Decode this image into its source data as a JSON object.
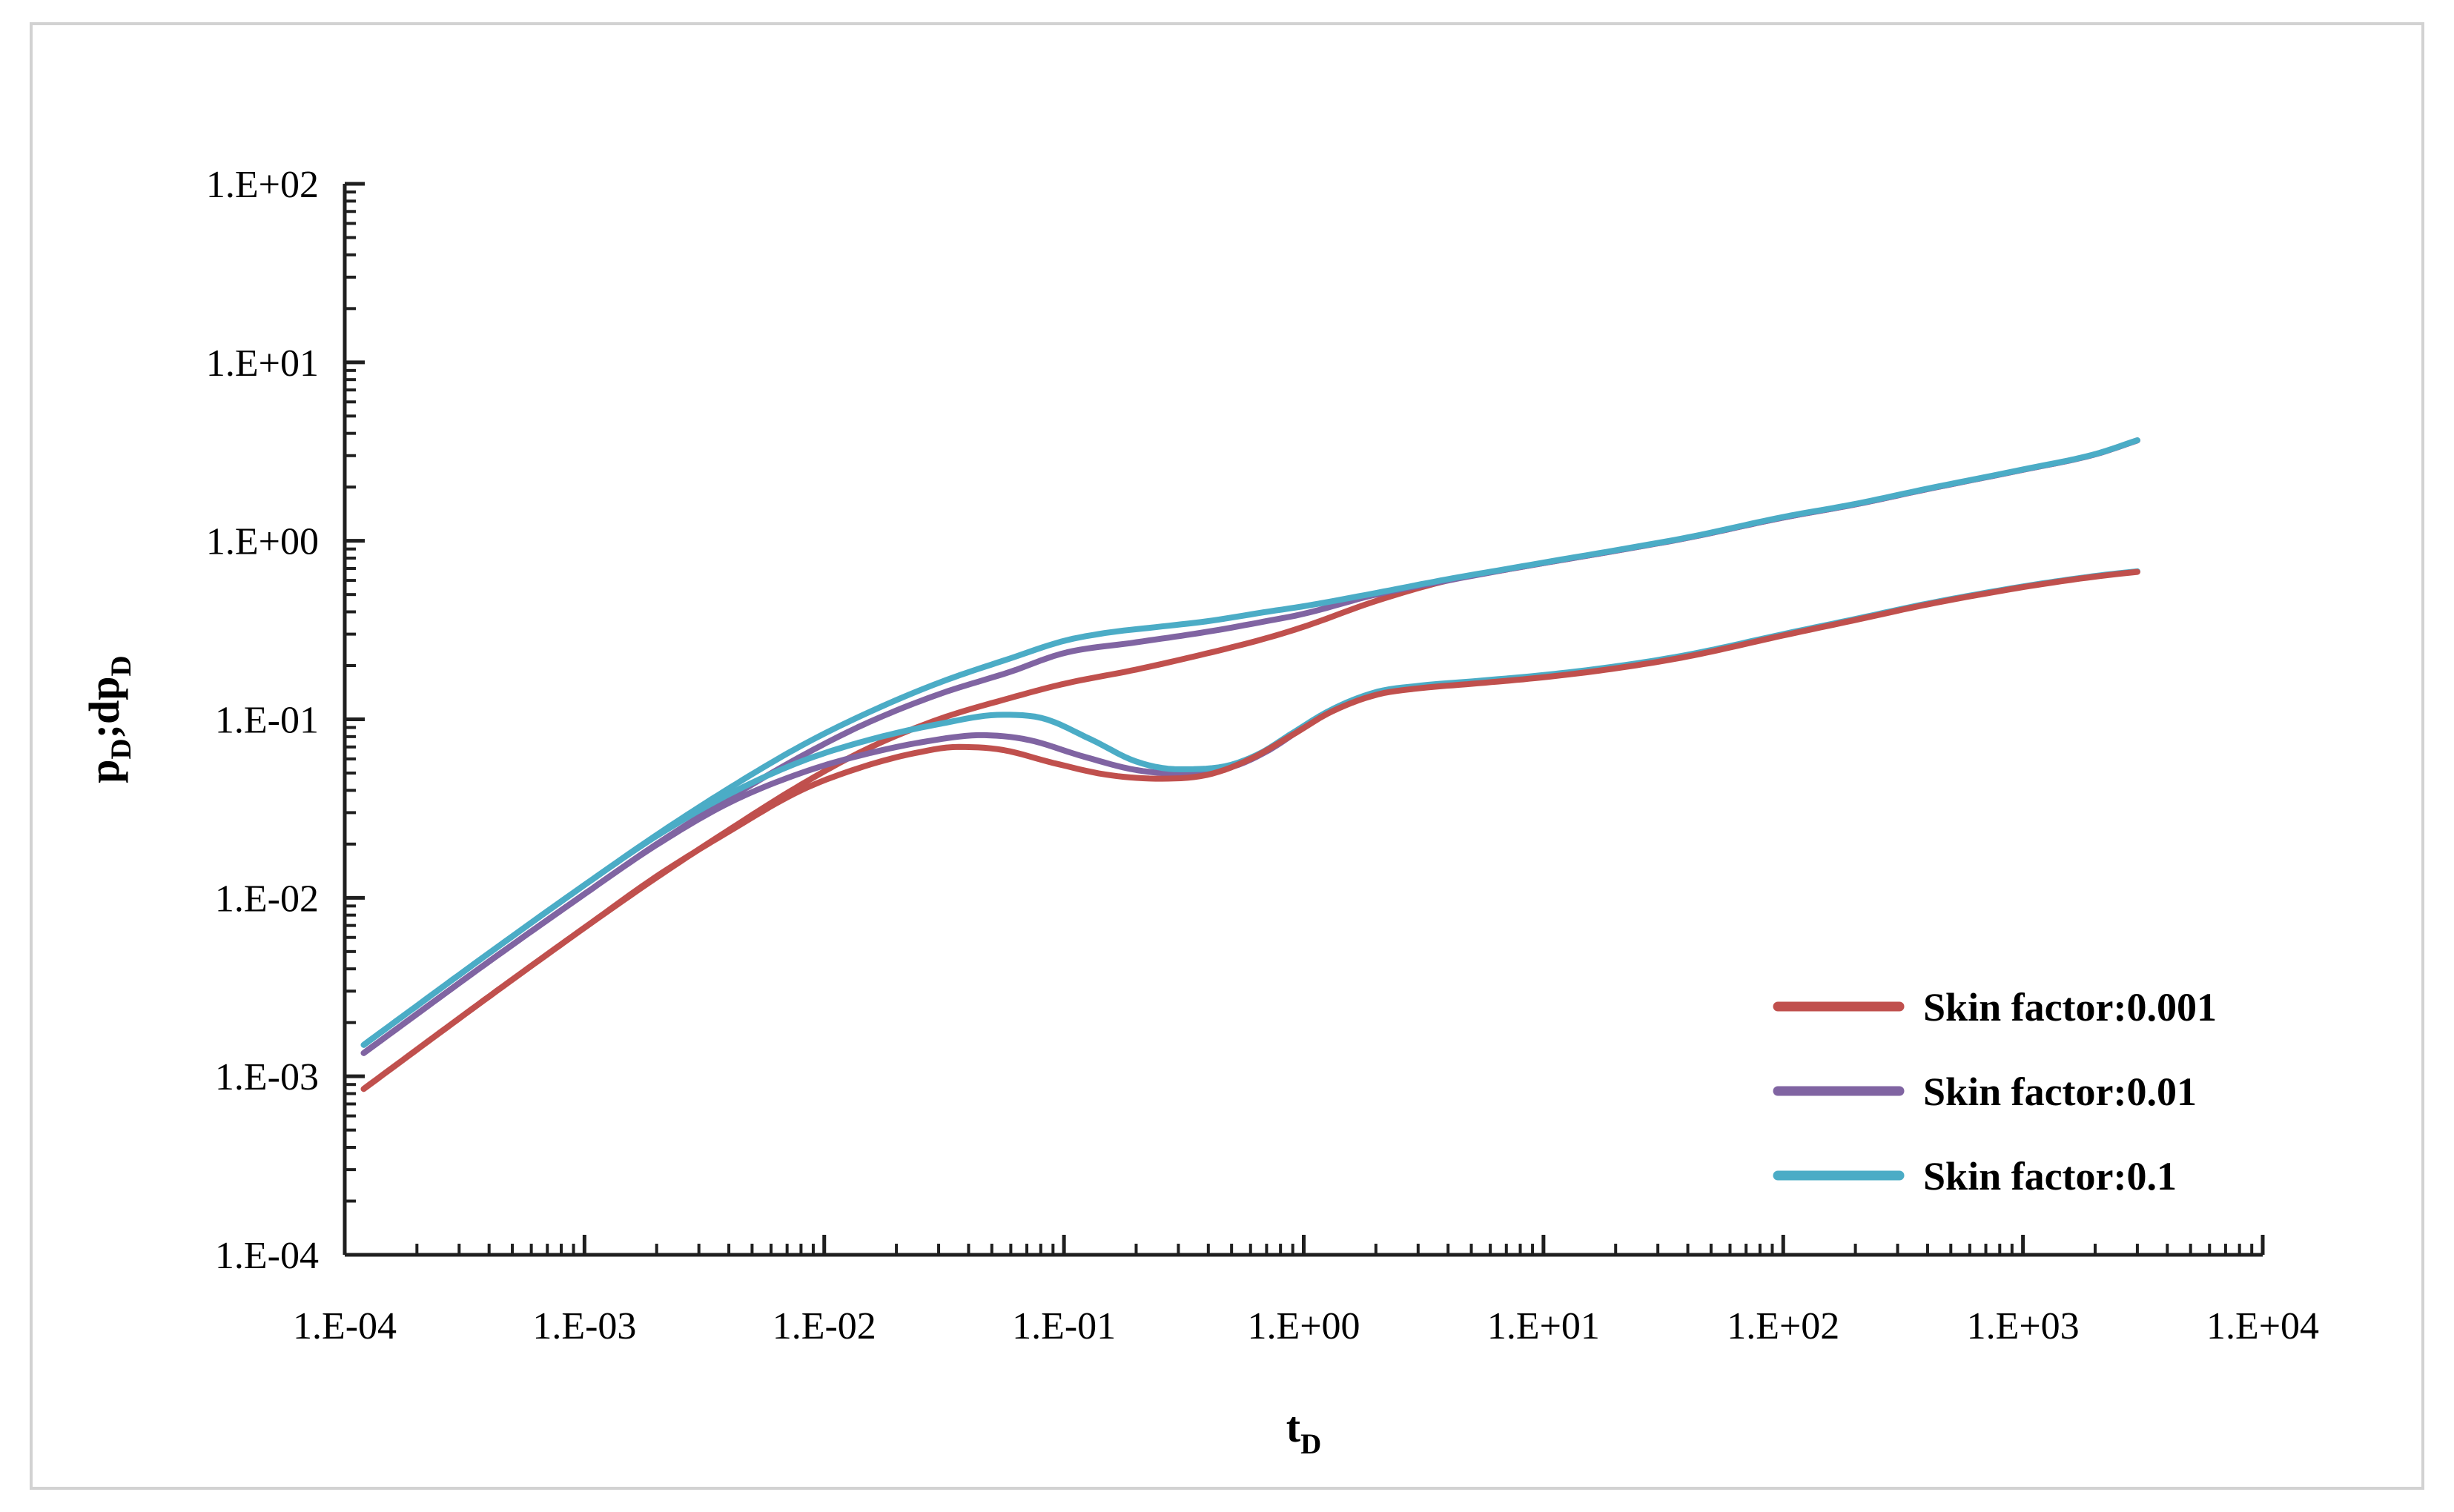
{
  "style": {
    "background": "#ffffff",
    "frame_border_color": "#d2d2d2",
    "axis_color": "#1f1f1f",
    "text_color": "#000000",
    "curve_stroke_width": 8,
    "legend_stroke_width": 13
  },
  "chart_data": {
    "type": "line",
    "title": "",
    "x_axis": {
      "label": "t_D",
      "scale": "log",
      "min": 0.0001,
      "max": 10000,
      "tick_labels": [
        "1.E-04",
        "1.E-03",
        "1.E-02",
        "1.E-01",
        "1.E+00",
        "1.E+01",
        "1.E+02",
        "1.E+03",
        "1.E+04"
      ],
      "tick_values": [
        0.0001,
        0.001,
        0.01,
        0.1,
        1,
        10,
        100,
        1000,
        10000
      ]
    },
    "y_axis": {
      "label": "p_D;dp_D",
      "scale": "log",
      "min": 0.0001,
      "max": 100,
      "tick_labels": [
        "1.E-04",
        "1.E-03",
        "1.E-02",
        "1.E-01",
        "1.E+00",
        "1.E+01",
        "1.E+02"
      ],
      "tick_values": [
        0.0001,
        0.001,
        0.01,
        0.1,
        1,
        10,
        100
      ]
    },
    "legend": {
      "position": "inside-right",
      "entries": [
        {
          "label": "Skin factor:0.001",
          "color": "#C0504D"
        },
        {
          "label": "Skin factor:0.01",
          "color": "#8064A2"
        },
        {
          "label": "Skin factor:0.1",
          "color": "#4BACC6"
        }
      ]
    },
    "series": [
      {
        "id": "pressure-skin-0.001",
        "legend": "Skin factor:0.001",
        "role": "pressure",
        "color": "#C0504D",
        "points": [
          [
            0.00012,
            0.00085
          ],
          [
            0.0004,
            0.0028
          ],
          [
            0.001,
            0.0068
          ],
          [
            0.002,
            0.013
          ],
          [
            0.004,
            0.024
          ],
          [
            0.008,
            0.043
          ],
          [
            0.015,
            0.068
          ],
          [
            0.03,
            0.1
          ],
          [
            0.06,
            0.132
          ],
          [
            0.1,
            0.158
          ],
          [
            0.2,
            0.19
          ],
          [
            0.4,
            0.235
          ],
          [
            0.7,
            0.285
          ],
          [
            1,
            0.33
          ],
          [
            2,
            0.46
          ],
          [
            4,
            0.6
          ],
          [
            7,
            0.69
          ],
          [
            10,
            0.75
          ],
          [
            20,
            0.88
          ],
          [
            40,
            1.04
          ],
          [
            100,
            1.35
          ],
          [
            200,
            1.6
          ],
          [
            400,
            1.95
          ],
          [
            1000,
            2.5
          ],
          [
            2000,
            3.05
          ],
          [
            3000,
            3.65
          ]
        ]
      },
      {
        "id": "pressure-skin-0.01",
        "legend": "Skin factor:0.01",
        "role": "pressure",
        "color": "#8064A2",
        "points": [
          [
            0.00012,
            0.00135
          ],
          [
            0.0004,
            0.0044
          ],
          [
            0.001,
            0.0105
          ],
          [
            0.002,
            0.02
          ],
          [
            0.004,
            0.036
          ],
          [
            0.008,
            0.062
          ],
          [
            0.015,
            0.095
          ],
          [
            0.03,
            0.138
          ],
          [
            0.06,
            0.185
          ],
          [
            0.1,
            0.235
          ],
          [
            0.2,
            0.27
          ],
          [
            0.4,
            0.31
          ],
          [
            0.7,
            0.355
          ],
          [
            1,
            0.39
          ],
          [
            2,
            0.5
          ],
          [
            4,
            0.6
          ],
          [
            7,
            0.69
          ],
          [
            10,
            0.75
          ],
          [
            20,
            0.88
          ],
          [
            40,
            1.04
          ],
          [
            100,
            1.35
          ],
          [
            200,
            1.6
          ],
          [
            400,
            1.95
          ],
          [
            1000,
            2.5
          ],
          [
            2000,
            3.05
          ],
          [
            3000,
            3.65
          ]
        ]
      },
      {
        "id": "pressure-skin-0.1",
        "legend": "Skin factor:0.1",
        "role": "pressure",
        "color": "#4BACC6",
        "points": [
          [
            0.00012,
            0.0015
          ],
          [
            0.0004,
            0.0049
          ],
          [
            0.001,
            0.0118
          ],
          [
            0.002,
            0.0225
          ],
          [
            0.004,
            0.041
          ],
          [
            0.008,
            0.071
          ],
          [
            0.015,
            0.108
          ],
          [
            0.03,
            0.16
          ],
          [
            0.06,
            0.22
          ],
          [
            0.1,
            0.275
          ],
          [
            0.15,
            0.305
          ],
          [
            0.25,
            0.33
          ],
          [
            0.4,
            0.355
          ],
          [
            0.7,
            0.4
          ],
          [
            1,
            0.43
          ],
          [
            2,
            0.51
          ],
          [
            4,
            0.61
          ],
          [
            7,
            0.695
          ],
          [
            10,
            0.755
          ],
          [
            20,
            0.885
          ],
          [
            40,
            1.045
          ],
          [
            100,
            1.36
          ],
          [
            200,
            1.61
          ],
          [
            400,
            1.96
          ],
          [
            1000,
            2.51
          ],
          [
            2000,
            3.06
          ],
          [
            3000,
            3.66
          ]
        ]
      },
      {
        "id": "derivative-skin-0.01",
        "legend": "Skin factor:0.01",
        "role": "derivative",
        "color": "#8064A2",
        "points": [
          [
            0.00012,
            0.00135
          ],
          [
            0.0004,
            0.0044
          ],
          [
            0.001,
            0.0105
          ],
          [
            0.002,
            0.0198
          ],
          [
            0.004,
            0.034
          ],
          [
            0.008,
            0.05
          ],
          [
            0.015,
            0.064
          ],
          [
            0.028,
            0.076
          ],
          [
            0.045,
            0.0815
          ],
          [
            0.07,
            0.077
          ],
          [
            0.12,
            0.062
          ],
          [
            0.2,
            0.052
          ],
          [
            0.32,
            0.0495
          ],
          [
            0.5,
            0.054
          ],
          [
            0.7,
            0.066
          ],
          [
            1,
            0.09
          ],
          [
            1.4,
            0.118
          ],
          [
            2,
            0.14
          ],
          [
            3,
            0.152
          ],
          [
            5,
            0.161
          ],
          [
            10,
            0.175
          ],
          [
            20,
            0.196
          ],
          [
            40,
            0.228
          ],
          [
            100,
            0.298
          ],
          [
            200,
            0.363
          ],
          [
            400,
            0.443
          ],
          [
            1000,
            0.553
          ],
          [
            2000,
            0.633
          ],
          [
            3000,
            0.673
          ]
        ]
      },
      {
        "id": "derivative-skin-0.1",
        "legend": "Skin factor:0.1",
        "role": "derivative",
        "color": "#4BACC6",
        "points": [
          [
            0.00012,
            0.0015
          ],
          [
            0.0004,
            0.0049
          ],
          [
            0.001,
            0.0118
          ],
          [
            0.002,
            0.0222
          ],
          [
            0.004,
            0.038
          ],
          [
            0.008,
            0.058
          ],
          [
            0.015,
            0.076
          ],
          [
            0.03,
            0.094
          ],
          [
            0.055,
            0.106
          ],
          [
            0.08,
            0.102
          ],
          [
            0.13,
            0.077
          ],
          [
            0.2,
            0.058
          ],
          [
            0.3,
            0.0525
          ],
          [
            0.45,
            0.054
          ],
          [
            0.65,
            0.064
          ],
          [
            0.9,
            0.084
          ],
          [
            1.3,
            0.113
          ],
          [
            2,
            0.142
          ],
          [
            3,
            0.154
          ],
          [
            5,
            0.163
          ],
          [
            10,
            0.177
          ],
          [
            20,
            0.198
          ],
          [
            40,
            0.23
          ],
          [
            100,
            0.3
          ],
          [
            200,
            0.365
          ],
          [
            400,
            0.445
          ],
          [
            1000,
            0.555
          ],
          [
            2000,
            0.635
          ],
          [
            3000,
            0.675
          ]
        ]
      },
      {
        "id": "derivative-skin-0.001",
        "legend": "Skin factor:0.001",
        "role": "derivative",
        "color": "#C0504D",
        "points": [
          [
            0.00012,
            0.00085
          ],
          [
            0.0004,
            0.0028
          ],
          [
            0.001,
            0.0068
          ],
          [
            0.002,
            0.0132
          ],
          [
            0.004,
            0.0235
          ],
          [
            0.008,
            0.04
          ],
          [
            0.015,
            0.055
          ],
          [
            0.025,
            0.0655
          ],
          [
            0.036,
            0.07
          ],
          [
            0.055,
            0.0675
          ],
          [
            0.09,
            0.057
          ],
          [
            0.15,
            0.049
          ],
          [
            0.25,
            0.0465
          ],
          [
            0.4,
            0.049
          ],
          [
            0.6,
            0.06
          ],
          [
            0.9,
            0.082
          ],
          [
            1.3,
            0.11
          ],
          [
            2,
            0.137
          ],
          [
            3,
            0.149
          ],
          [
            5,
            0.158
          ],
          [
            10,
            0.172
          ],
          [
            20,
            0.193
          ],
          [
            40,
            0.225
          ],
          [
            100,
            0.295
          ],
          [
            200,
            0.36
          ],
          [
            400,
            0.44
          ],
          [
            1000,
            0.55
          ],
          [
            2000,
            0.63
          ],
          [
            3000,
            0.67
          ]
        ]
      }
    ]
  }
}
